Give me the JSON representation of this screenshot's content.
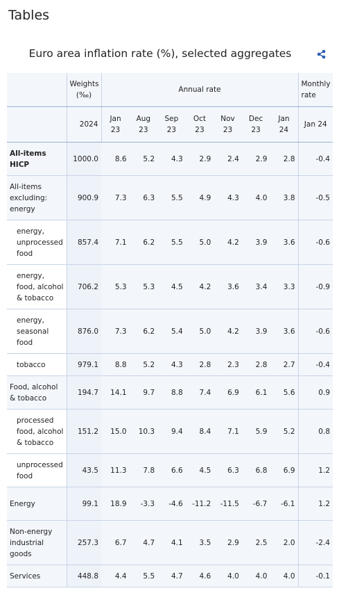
{
  "header": {
    "title": "Tables"
  },
  "table": {
    "title": "Euro area inflation rate (%), selected aggregates",
    "head1": [
      "Weights (‰)",
      "Annual rate",
      "Monthly rate"
    ],
    "head2": [
      "2024",
      "Jan 23",
      "Aug 23",
      "Sep 23",
      "Oct 23",
      "Nov 23",
      "Dec 23",
      "Jan 24",
      "Jan 24"
    ],
    "rows": [
      [
        "All-items HICP",
        "1000.0",
        "8.6",
        "5.2",
        "4.3",
        "2.9",
        "2.4",
        "2.9",
        "2.8",
        "-0.4"
      ],
      [
        "All-items excluding: energy",
        "900.9",
        "7.3",
        "6.3",
        "5.5",
        "4.9",
        "4.3",
        "4.0",
        "3.8",
        "-0.5"
      ],
      [
        "energy, unprocessed food",
        "857.4",
        "7.1",
        "6.2",
        "5.5",
        "5.0",
        "4.2",
        "3.9",
        "3.6",
        "-0.6"
      ],
      [
        "energy, food, alcohol & tobacco",
        "706.2",
        "5.3",
        "5.3",
        "4.5",
        "4.2",
        "3.6",
        "3.4",
        "3.3",
        "-0.9"
      ],
      [
        "energy, seasonal food",
        "876.0",
        "7.3",
        "6.2",
        "5.4",
        "5.0",
        "4.2",
        "3.9",
        "3.6",
        "-0.6"
      ],
      [
        "tobacco",
        "979.1",
        "8.8",
        "5.2",
        "4.3",
        "2.8",
        "2.3",
        "2.8",
        "2.7",
        "-0.4"
      ],
      [
        "Food, alcohol & tobacco",
        "194.7",
        "14.1",
        "9.7",
        "8.8",
        "7.4",
        "6.9",
        "6.1",
        "5.6",
        "0.9"
      ],
      [
        "processed food, alcohol & tobacco",
        "151.2",
        "15.0",
        "10.3",
        "9.4",
        "8.4",
        "7.1",
        "5.9",
        "5.2",
        "0.8"
      ],
      [
        "unprocessed food",
        "43.5",
        "11.3",
        "7.8",
        "6.6",
        "4.5",
        "6.3",
        "6.8",
        "6.9",
        "1.2"
      ],
      [
        "Energy",
        "99.1",
        "18.9",
        "-3.3",
        "-4.6",
        "-11.2",
        "-11.5",
        "-6.7",
        "-6.1",
        "1.2"
      ],
      [
        "Non-energy industrial goods",
        "257.3",
        "6.7",
        "4.7",
        "4.1",
        "3.5",
        "2.9",
        "2.5",
        "2.0",
        "-2.4"
      ],
      [
        "Services",
        "448.8",
        "4.4",
        "5.5",
        "4.7",
        "4.6",
        "4.0",
        "4.0",
        "4.0",
        "-0.1"
      ]
    ]
  }
}
